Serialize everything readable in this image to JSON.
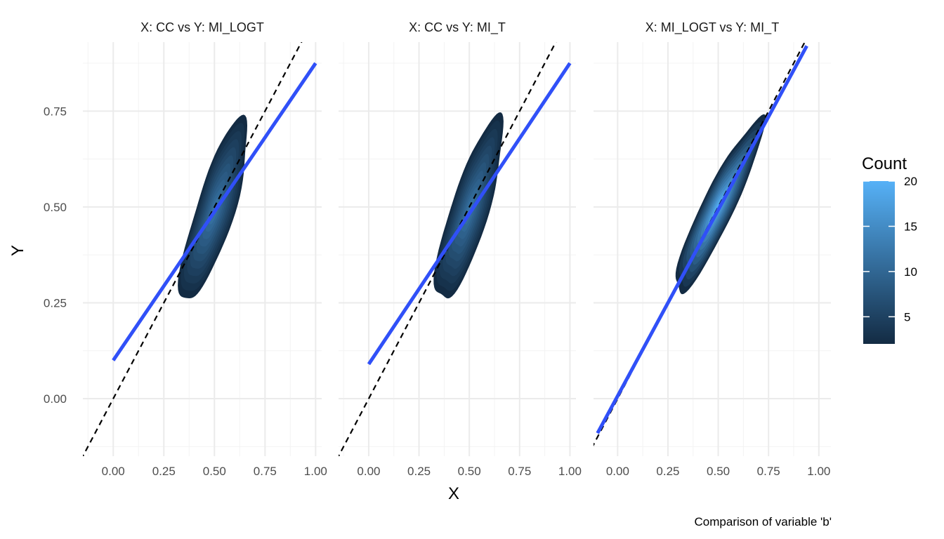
{
  "chart_data": {
    "type": "density_contour_facets",
    "xlabel": "X",
    "ylabel": "Y",
    "caption": "Comparison of variable 'b'",
    "legend": {
      "title": "Count",
      "placement": "right",
      "range": [
        2,
        20
      ],
      "ticks": [
        5,
        10,
        15,
        20
      ],
      "low_color": "#132b43",
      "high_color": "#56b1f7"
    },
    "reference_line": {
      "style": "dashed",
      "color": "#000000",
      "slope": 1,
      "intercept": 0
    },
    "fit_line_color": "#3050f8",
    "grid": true,
    "panels": [
      {
        "title": "X: CC vs Y: MI_LOGT",
        "xlim": [
          -0.15,
          1.03
        ],
        "ylim": [
          -0.15,
          0.93
        ],
        "x_ticks": [
          "0.00",
          "0.25",
          "0.50",
          "0.75",
          "1.00"
        ],
        "fit_line": {
          "x": [
            0.0,
            1.0
          ],
          "y": [
            0.1,
            0.875
          ]
        },
        "density": {
          "center": [
            0.5,
            0.49
          ],
          "spread_major": 0.28,
          "spread_minor": 0.085,
          "angle_deg": 57,
          "max_count": 12
        }
      },
      {
        "title": "X: CC vs Y: MI_T",
        "xlim": [
          -0.15,
          1.03
        ],
        "ylim": [
          -0.15,
          0.93
        ],
        "x_ticks": [
          "0.00",
          "0.25",
          "0.50",
          "0.75",
          "1.00"
        ],
        "fit_line": {
          "x": [
            0.0,
            1.0
          ],
          "y": [
            0.09,
            0.875
          ]
        },
        "density": {
          "center": [
            0.5,
            0.49
          ],
          "spread_major": 0.28,
          "spread_minor": 0.085,
          "angle_deg": 57,
          "max_count": 12
        }
      },
      {
        "title": "X: MI_LOGT vs Y: MI_T",
        "xlim": [
          -0.12,
          1.06
        ],
        "ylim": [
          -0.15,
          0.93
        ],
        "x_ticks": [
          "0.00",
          "0.25",
          "0.50",
          "0.75",
          "1.00"
        ],
        "fit_line": {
          "x": [
            -0.1,
            0.94
          ],
          "y": [
            -0.09,
            0.92
          ]
        },
        "density": {
          "center": [
            0.5,
            0.5
          ],
          "spread_major": 0.31,
          "spread_minor": 0.065,
          "angle_deg": 46,
          "max_count": 20
        }
      }
    ],
    "y_ticks": [
      "0.00",
      "0.25",
      "0.50",
      "0.75"
    ]
  }
}
